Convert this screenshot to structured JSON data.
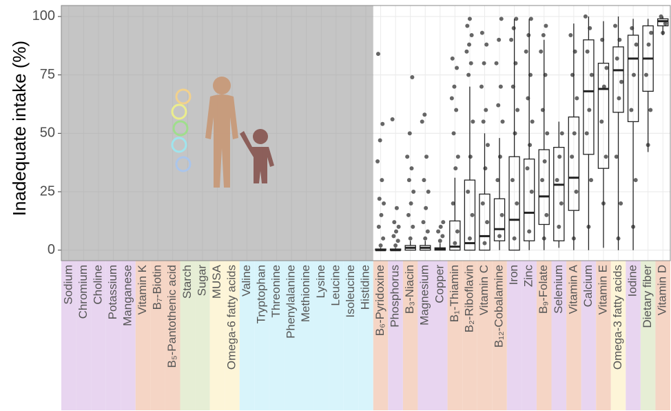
{
  "chart_data": {
    "type": "box",
    "ylabel": "Inadequate intake (%)",
    "ylim": [
      -4.5,
      104.7
    ],
    "yticks": [
      0,
      25,
      50,
      75,
      100
    ],
    "grid": true,
    "shaded_categories": 21,
    "categories": [
      "Sodium",
      "Chromium",
      "Choline",
      "Potassium",
      "Manganese",
      "Vitamin K",
      "B₇-Biotin",
      "B₅-Pantothenic acid",
      "Starch",
      "Sugar",
      "MUSA",
      "Omega-6 fatty acids",
      "Valine",
      "Tryptophan",
      "Threonine",
      "Phenylalanine",
      "Methionine",
      "Lysine",
      "Leucine",
      "Isoleucine",
      "Histidine",
      "B₆-Pyridoxine",
      "Phosphorus",
      "B₃-Niacin",
      "Magnesium",
      "Copper",
      "B₁-Thiamin",
      "B₂-Riboflavin",
      "Vitamin C",
      "B₁₂-Cobalamine",
      "Iron",
      "Zinc",
      "B₉-Folate",
      "Selenium",
      "Vitamin A",
      "Calcium",
      "Vitamin E",
      "Omega-3 fatty acids",
      "Iodine",
      "Dietary fiber",
      "Vitamin D"
    ],
    "category_colors": [
      "#e8d5f0",
      "#e8d5f0",
      "#e8d5f0",
      "#e8d5f0",
      "#e8d5f0",
      "#f5d5c5",
      "#f5d5c5",
      "#f5d5c5",
      "#e6eed5",
      "#e6eed5",
      "#fdf5d8",
      "#fdf5d8",
      "#d8f4fb",
      "#d8f4fb",
      "#d8f4fb",
      "#d8f4fb",
      "#d8f4fb",
      "#d8f4fb",
      "#d8f4fb",
      "#d8f4fb",
      "#d8f4fb",
      "#f5d5c5",
      "#e8d5f0",
      "#f5d5c5",
      "#e8d5f0",
      "#e8d5f0",
      "#f5d5c5",
      "#f5d5c5",
      "#f5d5c5",
      "#f5d5c5",
      "#e8d5f0",
      "#e8d5f0",
      "#f5d5c5",
      "#e8d5f0",
      "#f5d5c5",
      "#e8d5f0",
      "#f5d5c5",
      "#fdf5d8",
      "#e8d5f0",
      "#e6eed5",
      "#f5d5c5"
    ],
    "box_color": "#222222",
    "point_color": "#333333",
    "boxes": [
      null,
      null,
      null,
      null,
      null,
      null,
      null,
      null,
      null,
      null,
      null,
      null,
      null,
      null,
      null,
      null,
      null,
      null,
      null,
      null,
      null,
      {
        "whisker_low": 0,
        "q1": 0,
        "median": 0,
        "q3": 0.5,
        "whisker_high": 1,
        "points": [
          2,
          5,
          10,
          15,
          20,
          22,
          30,
          38,
          47,
          54,
          84
        ]
      },
      {
        "whisker_low": 0,
        "q1": 0,
        "median": 0,
        "q3": 0.5,
        "whisker_high": 1,
        "points": [
          2,
          4,
          6,
          8,
          10,
          12,
          18,
          56
        ]
      },
      {
        "whisker_low": 0,
        "q1": 0,
        "median": 1,
        "q3": 2,
        "whisker_high": 4,
        "points": [
          5,
          10,
          15,
          20,
          25,
          30,
          35,
          40,
          50,
          74
        ]
      },
      {
        "whisker_low": 0,
        "q1": 0,
        "median": 1,
        "q3": 2,
        "whisker_high": 4,
        "points": [
          5,
          8,
          12,
          18,
          25,
          30,
          40,
          55,
          58
        ]
      },
      {
        "whisker_low": 0,
        "q1": 0,
        "median": 0.5,
        "q3": 1,
        "whisker_high": 3,
        "points": [
          4,
          6,
          8,
          10,
          12
        ]
      },
      {
        "whisker_low": 0,
        "q1": 0,
        "median": 1.5,
        "q3": 12.5,
        "whisker_high": 31,
        "points": [
          3,
          8,
          20,
          35,
          40,
          50,
          60,
          65,
          70,
          78,
          82
        ]
      },
      {
        "whisker_low": 0,
        "q1": 0,
        "median": 3,
        "q3": 30,
        "whisker_high": 70,
        "points": [
          5,
          15,
          25,
          40,
          55,
          75,
          80,
          85,
          88,
          92,
          96,
          99
        ]
      },
      {
        "whisker_low": 0,
        "q1": 0,
        "median": 6,
        "q3": 24,
        "whisker_high": 50,
        "points": [
          3,
          12,
          20,
          35,
          45,
          55,
          60,
          70,
          80,
          88,
          93
        ]
      },
      {
        "whisker_low": 0,
        "q1": 4,
        "median": 9,
        "q3": 22,
        "whisker_high": 48,
        "points": [
          6,
          15,
          30,
          40,
          55,
          62,
          70,
          80,
          90,
          99
        ]
      },
      {
        "whisker_low": 0,
        "q1": 0,
        "median": 13,
        "q3": 40,
        "whisker_high": 99,
        "points": [
          5,
          20,
          30,
          50,
          60,
          70,
          80,
          90,
          95,
          99
        ]
      },
      {
        "whisker_low": 0,
        "q1": 4,
        "median": 16,
        "q3": 39,
        "whisker_high": 99,
        "points": [
          8,
          25,
          35,
          45,
          55,
          65,
          75,
          85,
          92,
          99
        ]
      },
      {
        "whisker_low": 0,
        "q1": 11,
        "median": 23,
        "q3": 43,
        "whisker_high": 90,
        "points": [
          5,
          15,
          30,
          38,
          50,
          60,
          75,
          85,
          92,
          96
        ]
      },
      {
        "whisker_low": 1,
        "q1": 4,
        "median": 28,
        "q3": 44,
        "whisker_high": 55,
        "points": [
          10,
          20,
          30,
          40,
          50
        ]
      },
      {
        "whisker_low": 0,
        "q1": 17,
        "median": 31,
        "q3": 57,
        "whisker_high": 97,
        "points": [
          5,
          25,
          40,
          50,
          65,
          75,
          85,
          92
        ]
      },
      {
        "whisker_low": 0,
        "q1": 41,
        "median": 68,
        "q3": 90,
        "whisker_high": 100,
        "points": [
          10,
          30,
          50,
          60,
          75,
          85,
          95,
          100
        ]
      },
      {
        "whisker_low": 1,
        "q1": 35,
        "median": 69,
        "q3": 80,
        "whisker_high": 98,
        "points": [
          20,
          40,
          55,
          70,
          78,
          90
        ]
      },
      {
        "whisker_low": 0,
        "q1": 59,
        "median": 77,
        "q3": 87,
        "whisker_high": 100,
        "points": [
          5,
          20,
          40,
          65,
          72,
          82,
          90,
          96
        ]
      },
      {
        "whisker_low": 0,
        "q1": 55,
        "median": 82,
        "q3": 92,
        "whisker_high": 99,
        "points": [
          10,
          30,
          60,
          75,
          88,
          95
        ]
      },
      {
        "whisker_low": 42,
        "q1": 68,
        "median": 82,
        "q3": 96,
        "whisker_high": 99,
        "points": [
          45,
          60,
          75,
          88,
          93
        ]
      },
      {
        "whisker_low": 92,
        "q1": 96,
        "median": 98,
        "q3": 99,
        "whisker_high": 100,
        "points": [
          93,
          97,
          100
        ]
      }
    ]
  }
}
